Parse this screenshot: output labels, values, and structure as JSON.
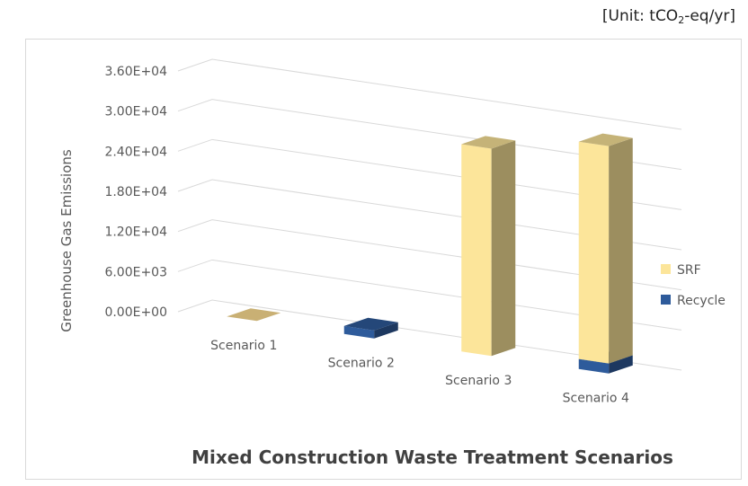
{
  "unit": {
    "prefix": "[Unit: tCO",
    "sub": "2",
    "suffix": "-eq/yr]"
  },
  "chart_data": {
    "type": "bar",
    "stacked": true,
    "view": "3d",
    "categories": [
      "Scenario 1",
      "Scenario 2",
      "Scenario 3",
      "Scenario 4"
    ],
    "series": [
      {
        "name": "Recycle",
        "color": "#2e5b9b",
        "values": [
          0,
          1200,
          0,
          1500
        ]
      },
      {
        "name": "SRF",
        "color": "#fce59a",
        "values": [
          0,
          0,
          31000,
          32500
        ]
      }
    ],
    "ylabel": "Greenhouse Gas Emissions",
    "xlabel": "Mixed Construction Waste Treatment Scenarios",
    "ylim": [
      0,
      36000
    ],
    "yticks": [
      "0.00E+00",
      "6.00E+03",
      "1.20E+04",
      "1.80E+04",
      "2.40E+04",
      "3.00E+04",
      "3.60E+04"
    ],
    "grid": true,
    "legend": "right"
  }
}
